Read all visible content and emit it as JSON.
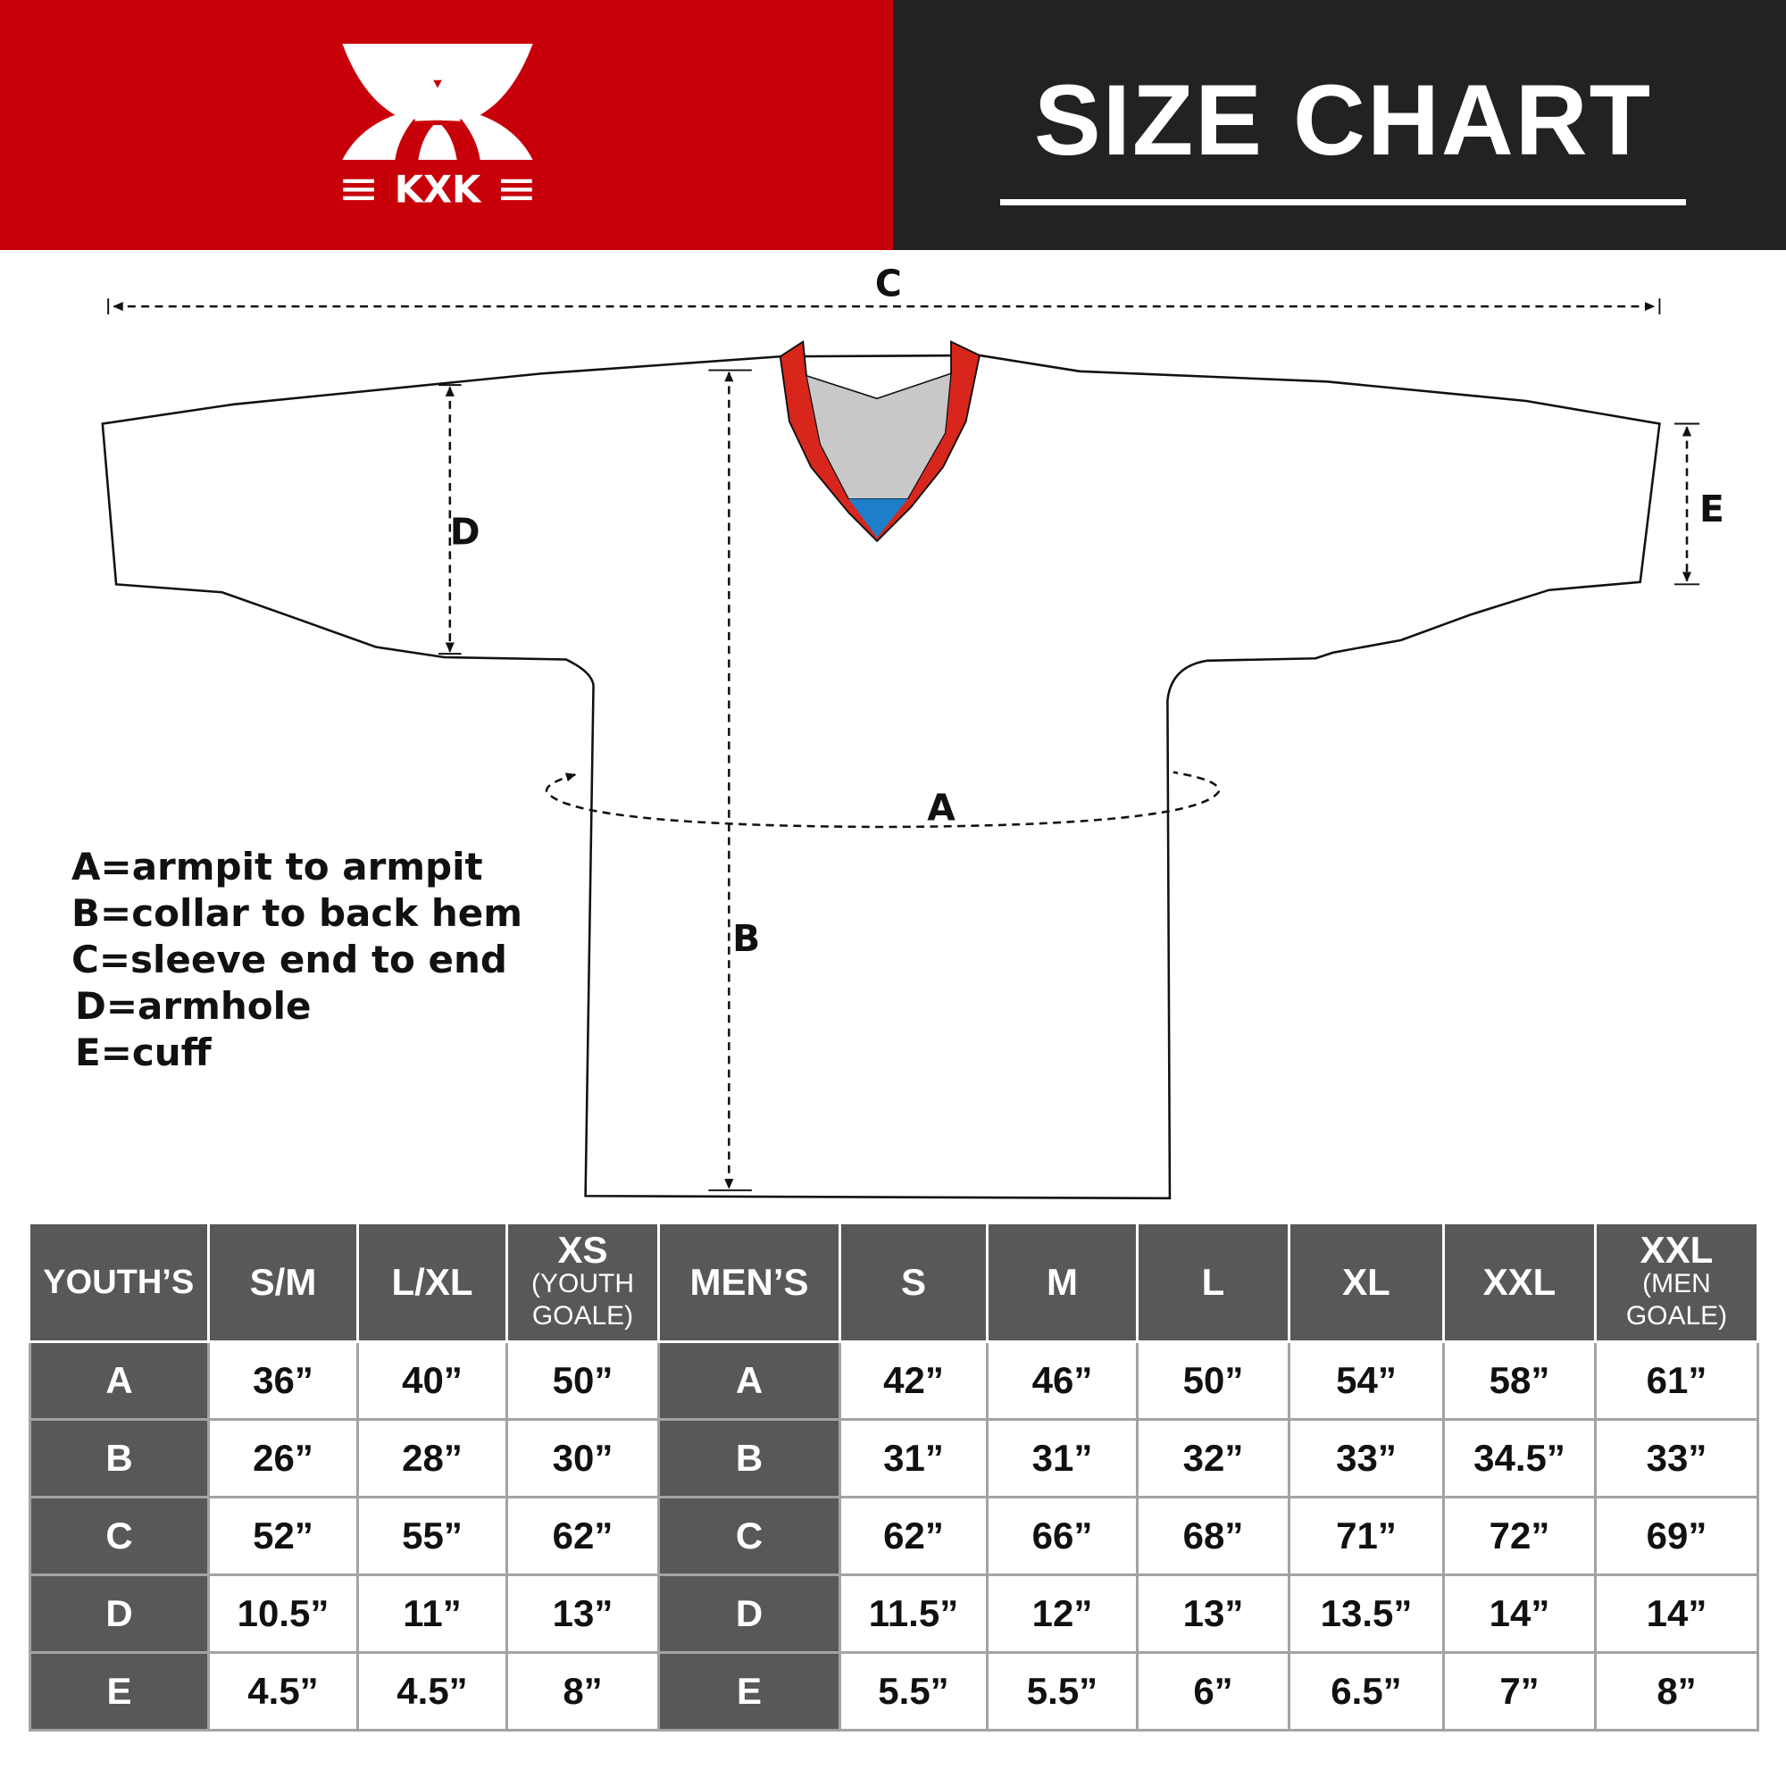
{
  "brand": {
    "name": "KXK",
    "red": "#c8000a",
    "dark": "#222222"
  },
  "header": {
    "title": "SIZE CHART"
  },
  "diagram": {
    "labels": {
      "a": "A",
      "b": "B",
      "c": "C",
      "d": "D",
      "e": "E"
    },
    "colors": {
      "collar": "#d9261c",
      "inner": "#c8c8c8",
      "accent": "#1e7fc8"
    }
  },
  "legend": [
    "A=armpit to armpit",
    "B=collar to back hem",
    "C=sleeve end to end",
    "D=armhole",
    "E=cuff"
  ],
  "table": {
    "headers": [
      {
        "main": "YOUTH’S",
        "sub": ""
      },
      {
        "main": "S/M",
        "sub": ""
      },
      {
        "main": "L/XL",
        "sub": ""
      },
      {
        "main": "XS",
        "sub": "(YOUTH GOALE)"
      },
      {
        "main": "MEN’S",
        "sub": ""
      },
      {
        "main": "S",
        "sub": ""
      },
      {
        "main": "M",
        "sub": ""
      },
      {
        "main": "L",
        "sub": ""
      },
      {
        "main": "XL",
        "sub": ""
      },
      {
        "main": "XXL",
        "sub": ""
      },
      {
        "main": "XXL",
        "sub": "(MEN GOALE)"
      }
    ],
    "rows": [
      [
        "A",
        "36”",
        "40”",
        "50”",
        "A",
        "42”",
        "46”",
        "50”",
        "54”",
        "58”",
        "61”"
      ],
      [
        "B",
        "26”",
        "28”",
        "30”",
        "B",
        "31”",
        "31”",
        "32”",
        "33”",
        "34.5”",
        "33”"
      ],
      [
        "C",
        "52”",
        "55”",
        "62”",
        "C",
        "62”",
        "66”",
        "68”",
        "71”",
        "72”",
        "69”"
      ],
      [
        "D",
        "10.5”",
        "11”",
        "13”",
        "D",
        "11.5”",
        "12”",
        "13”",
        "13.5”",
        "14”",
        "14”"
      ],
      [
        "E",
        "4.5”",
        "4.5”",
        "8”",
        "E",
        "5.5”",
        "5.5”",
        "6”",
        "6.5”",
        "7”",
        "8”"
      ]
    ]
  }
}
